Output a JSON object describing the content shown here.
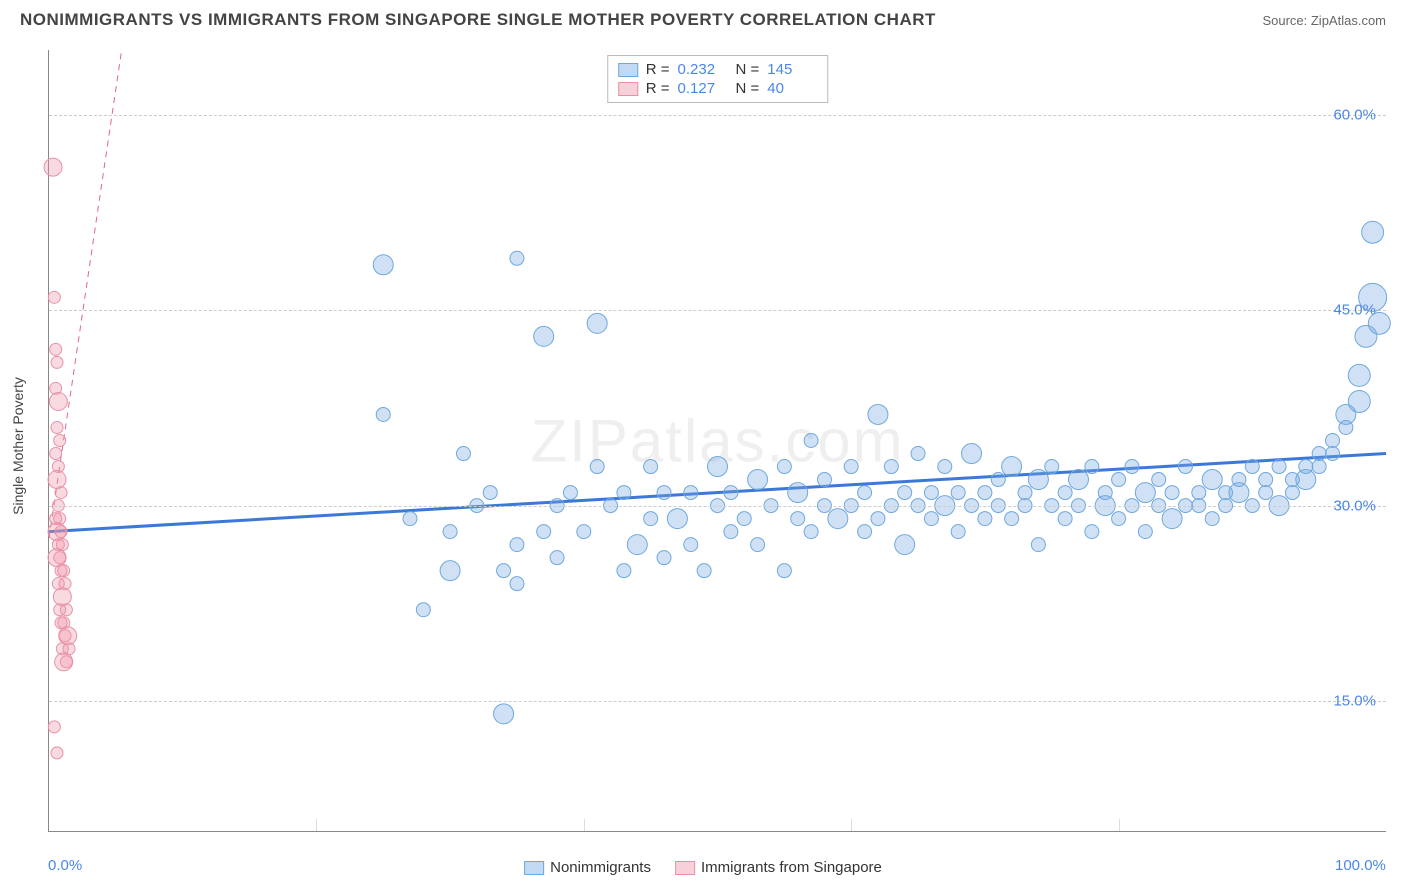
{
  "header": {
    "title": "NONIMMIGRANTS VS IMMIGRANTS FROM SINGAPORE SINGLE MOTHER POVERTY CORRELATION CHART",
    "source": "Source: ZipAtlas.com"
  },
  "watermark": "ZIPatlas.com",
  "ylabel": "Single Mother Poverty",
  "chart": {
    "type": "scatter",
    "xlim": [
      0,
      100
    ],
    "ylim": [
      5,
      65
    ],
    "yticks": [
      {
        "v": 15,
        "label": "15.0%"
      },
      {
        "v": 30,
        "label": "30.0%"
      },
      {
        "v": 45,
        "label": "45.0%"
      },
      {
        "v": 60,
        "label": "60.0%"
      }
    ],
    "xticks_minor": [
      20,
      40,
      60,
      80
    ],
    "xtick_labels": [
      {
        "v": 0,
        "label": "0.0%"
      },
      {
        "v": 100,
        "label": "100.0%"
      }
    ],
    "background_color": "#ffffff",
    "grid_color": "#cccccc",
    "series": [
      {
        "name": "Nonimmigrants",
        "fill": "rgba(120,170,230,0.35)",
        "stroke": "#6fa8dc",
        "trend": {
          "y0": 28.0,
          "y1": 34.0,
          "color": "#3b78d8",
          "width": 3
        },
        "r_base": 7,
        "points": [
          [
            25,
            48.5
          ],
          [
            25,
            37
          ],
          [
            27,
            29
          ],
          [
            28,
            22
          ],
          [
            30,
            28
          ],
          [
            30,
            25
          ],
          [
            31,
            34
          ],
          [
            32,
            30
          ],
          [
            33,
            31
          ],
          [
            34,
            25
          ],
          [
            34,
            14
          ],
          [
            35,
            49
          ],
          [
            35,
            27
          ],
          [
            35,
            24
          ],
          [
            37,
            28
          ],
          [
            37,
            43
          ],
          [
            38,
            30
          ],
          [
            38,
            26
          ],
          [
            39,
            31
          ],
          [
            40,
            28
          ],
          [
            41,
            44
          ],
          [
            41,
            33
          ],
          [
            42,
            30
          ],
          [
            43,
            25
          ],
          [
            43,
            31
          ],
          [
            44,
            27
          ],
          [
            45,
            29
          ],
          [
            45,
            33
          ],
          [
            46,
            26
          ],
          [
            46,
            31
          ],
          [
            47,
            29
          ],
          [
            48,
            27
          ],
          [
            48,
            31
          ],
          [
            49,
            25
          ],
          [
            50,
            30
          ],
          [
            50,
            33
          ],
          [
            51,
            28
          ],
          [
            51,
            31
          ],
          [
            52,
            29
          ],
          [
            53,
            27
          ],
          [
            53,
            32
          ],
          [
            54,
            30
          ],
          [
            55,
            25
          ],
          [
            55,
            33
          ],
          [
            56,
            29
          ],
          [
            56,
            31
          ],
          [
            57,
            35
          ],
          [
            57,
            28
          ],
          [
            58,
            30
          ],
          [
            58,
            32
          ],
          [
            59,
            29
          ],
          [
            60,
            33
          ],
          [
            60,
            30
          ],
          [
            61,
            28
          ],
          [
            61,
            31
          ],
          [
            62,
            37
          ],
          [
            62,
            29
          ],
          [
            63,
            30
          ],
          [
            63,
            33
          ],
          [
            64,
            31
          ],
          [
            64,
            27
          ],
          [
            65,
            30
          ],
          [
            65,
            34
          ],
          [
            66,
            29
          ],
          [
            66,
            31
          ],
          [
            67,
            30
          ],
          [
            67,
            33
          ],
          [
            68,
            28
          ],
          [
            68,
            31
          ],
          [
            69,
            30
          ],
          [
            69,
            34
          ],
          [
            70,
            31
          ],
          [
            70,
            29
          ],
          [
            71,
            32
          ],
          [
            71,
            30
          ],
          [
            72,
            33
          ],
          [
            72,
            29
          ],
          [
            73,
            31
          ],
          [
            73,
            30
          ],
          [
            74,
            27
          ],
          [
            74,
            32
          ],
          [
            75,
            30
          ],
          [
            75,
            33
          ],
          [
            76,
            31
          ],
          [
            76,
            29
          ],
          [
            77,
            32
          ],
          [
            77,
            30
          ],
          [
            78,
            33
          ],
          [
            78,
            28
          ],
          [
            79,
            31
          ],
          [
            79,
            30
          ],
          [
            80,
            32
          ],
          [
            80,
            29
          ],
          [
            81,
            30
          ],
          [
            81,
            33
          ],
          [
            82,
            31
          ],
          [
            82,
            28
          ],
          [
            83,
            30
          ],
          [
            83,
            32
          ],
          [
            84,
            31
          ],
          [
            84,
            29
          ],
          [
            85,
            30
          ],
          [
            85,
            33
          ],
          [
            86,
            31
          ],
          [
            86,
            30
          ],
          [
            87,
            32
          ],
          [
            87,
            29
          ],
          [
            88,
            31
          ],
          [
            88,
            30
          ],
          [
            89,
            32
          ],
          [
            89,
            31
          ],
          [
            90,
            30
          ],
          [
            90,
            33
          ],
          [
            91,
            31
          ],
          [
            91,
            32
          ],
          [
            92,
            30
          ],
          [
            92,
            33
          ],
          [
            93,
            32
          ],
          [
            93,
            31
          ],
          [
            94,
            33
          ],
          [
            94,
            32
          ],
          [
            95,
            34
          ],
          [
            95,
            33
          ],
          [
            96,
            35
          ],
          [
            96,
            34
          ],
          [
            97,
            37
          ],
          [
            97,
            36
          ],
          [
            98,
            40
          ],
          [
            98,
            38
          ],
          [
            98.5,
            43
          ],
          [
            99,
            46
          ],
          [
            99,
            51
          ],
          [
            99.5,
            44
          ]
        ]
      },
      {
        "name": "Immigrants from Singapore",
        "fill": "rgba(240,150,170,0.35)",
        "stroke": "#e892a8",
        "trend": {
          "y0": 27.5,
          "y1_at_x5": 62,
          "color": "#e06688",
          "width": 1,
          "dashed": true
        },
        "r_base": 6,
        "points": [
          [
            0.3,
            56
          ],
          [
            0.4,
            46
          ],
          [
            0.5,
            42
          ],
          [
            0.6,
            41
          ],
          [
            0.5,
            39
          ],
          [
            0.7,
            38
          ],
          [
            0.6,
            36
          ],
          [
            0.8,
            35
          ],
          [
            0.5,
            34
          ],
          [
            0.7,
            33
          ],
          [
            0.6,
            32
          ],
          [
            0.9,
            31
          ],
          [
            0.7,
            30
          ],
          [
            0.5,
            29
          ],
          [
            0.8,
            29
          ],
          [
            0.6,
            28
          ],
          [
            0.9,
            28
          ],
          [
            0.7,
            27
          ],
          [
            1.0,
            27
          ],
          [
            0.8,
            26
          ],
          [
            0.6,
            26
          ],
          [
            1.1,
            25
          ],
          [
            0.9,
            25
          ],
          [
            0.7,
            24
          ],
          [
            1.2,
            24
          ],
          [
            1.0,
            23
          ],
          [
            0.8,
            22
          ],
          [
            1.3,
            22
          ],
          [
            1.1,
            21
          ],
          [
            0.9,
            21
          ],
          [
            1.4,
            20
          ],
          [
            1.2,
            20
          ],
          [
            1.0,
            19
          ],
          [
            1.5,
            19
          ],
          [
            1.3,
            18
          ],
          [
            1.1,
            18
          ],
          [
            0.4,
            13
          ],
          [
            0.6,
            11
          ]
        ]
      }
    ]
  },
  "legend_top": {
    "rows": [
      {
        "swatch_fill": "rgba(120,170,230,0.45)",
        "swatch_stroke": "#6fa8dc",
        "r_label": "R =",
        "r_val": "0.232",
        "n_label": "N =",
        "n_val": "145"
      },
      {
        "swatch_fill": "rgba(240,150,170,0.45)",
        "swatch_stroke": "#e892a8",
        "r_label": "R =",
        "r_val": "0.127",
        "n_label": "N =",
        "n_val": "40"
      }
    ]
  },
  "legend_bottom": {
    "items": [
      {
        "swatch_fill": "rgba(120,170,230,0.45)",
        "swatch_stroke": "#6fa8dc",
        "label": "Nonimmigrants"
      },
      {
        "swatch_fill": "rgba(240,150,170,0.45)",
        "swatch_stroke": "#e892a8",
        "label": "Immigrants from Singapore"
      }
    ]
  }
}
